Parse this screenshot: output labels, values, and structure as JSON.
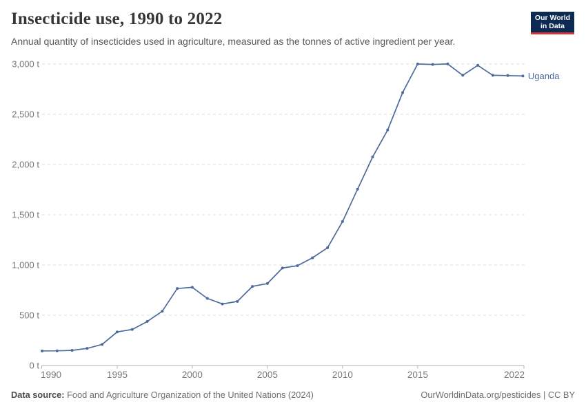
{
  "header": {
    "title": "Insecticide use, 1990 to 2022",
    "subtitle": "Annual quantity of insecticides used in agriculture, measured as the tonnes of active ingredient per year."
  },
  "logo": {
    "line1": "Our World",
    "line2": "in Data",
    "bg_color": "#0d2b52",
    "bar_color": "#d13a34"
  },
  "chart_data": {
    "type": "line",
    "title": "Insecticide use, 1990 to 2022",
    "unit": "t",
    "x": [
      1990,
      1991,
      1992,
      1993,
      1994,
      1995,
      1996,
      1997,
      1998,
      1999,
      2000,
      2001,
      2002,
      2003,
      2004,
      2005,
      2006,
      2007,
      2008,
      2009,
      2010,
      2011,
      2012,
      2013,
      2014,
      2015,
      2016,
      2017,
      2018,
      2019,
      2020,
      2021,
      2022
    ],
    "series": [
      {
        "name": "Uganda",
        "color": "#4c6a9c",
        "values": [
          145,
          146,
          151,
          170,
          210,
          334,
          359,
          438,
          540,
          766,
          778,
          668,
          612,
          638,
          787,
          816,
          970,
          993,
          1072,
          1172,
          1433,
          1755,
          2075,
          2343,
          2716,
          3000,
          2996,
          3001,
          2888,
          2987,
          2888,
          2885,
          2881
        ]
      }
    ],
    "x_ticks": [
      {
        "v": 1990,
        "label": "1990"
      },
      {
        "v": 1995,
        "label": "1995"
      },
      {
        "v": 2000,
        "label": "2000"
      },
      {
        "v": 2005,
        "label": "2005"
      },
      {
        "v": 2010,
        "label": "2010"
      },
      {
        "v": 2015,
        "label": "2015"
      },
      {
        "v": 2022,
        "label": "2022"
      }
    ],
    "y_ticks": [
      {
        "v": 0,
        "label": "0 t"
      },
      {
        "v": 500,
        "label": "500 t"
      },
      {
        "v": 1000,
        "label": "1,000 t"
      },
      {
        "v": 1500,
        "label": "1,500 t"
      },
      {
        "v": 2000,
        "label": "2,000 t"
      },
      {
        "v": 2500,
        "label": "2,500 t"
      },
      {
        "v": 3000,
        "label": "3,000 t"
      }
    ],
    "xlim": [
      1990,
      2022
    ],
    "ylim": [
      0,
      3000
    ],
    "grid": "horizontal-dashed",
    "legend_position": "line-end"
  },
  "footer": {
    "datasource_label": "Data source:",
    "datasource_text": "Food and Agriculture Organization of the United Nations (2024)",
    "license_text": "OurWorldinData.org/pesticides | CC BY"
  },
  "colors": {
    "line": "#4c6a9c",
    "gridline": "#dcdcdc",
    "axis_line": "#b0b0b0",
    "tick_text": "#787878"
  }
}
